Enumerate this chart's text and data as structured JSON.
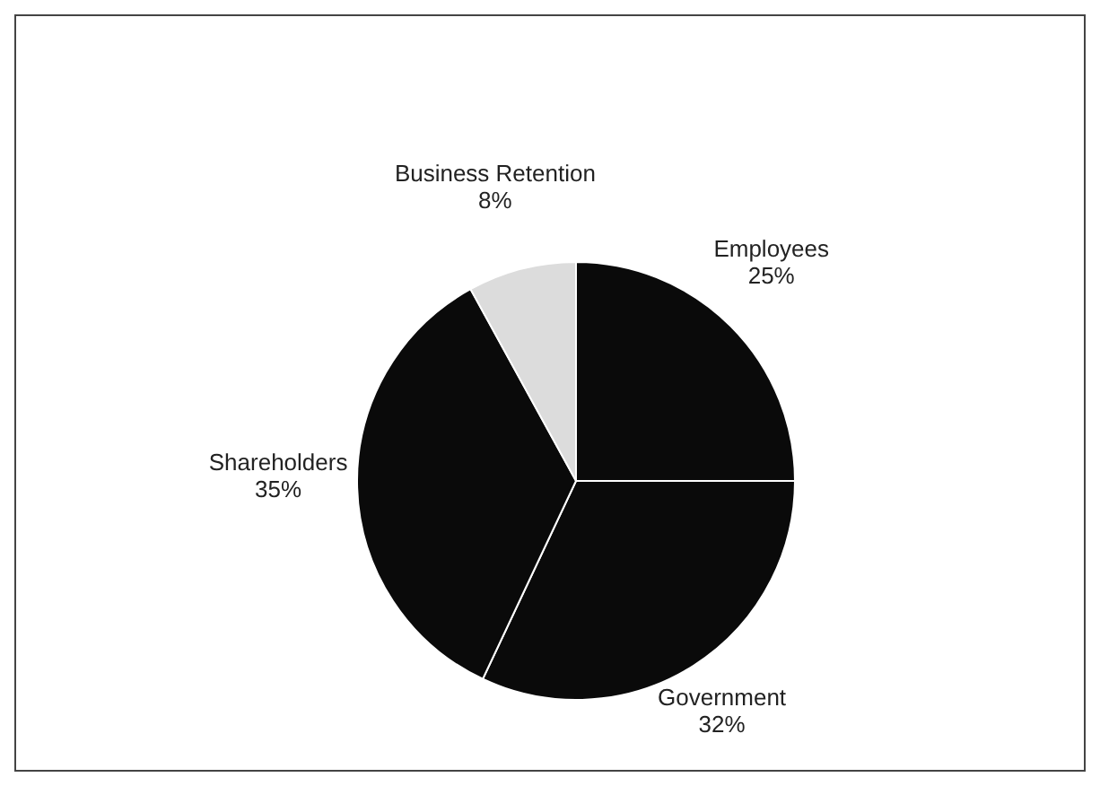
{
  "chart_data": {
    "type": "pie",
    "categories": [
      "Employees",
      "Government",
      "Shareholders",
      "Business Retention"
    ],
    "values": [
      25,
      32,
      35,
      8
    ],
    "value_labels": [
      "25%",
      "32%",
      "35%",
      "8%"
    ],
    "colors": [
      "#0a0a0a",
      "#0a0a0a",
      "#0a0a0a",
      "#dcdcdc"
    ],
    "legend": false
  }
}
